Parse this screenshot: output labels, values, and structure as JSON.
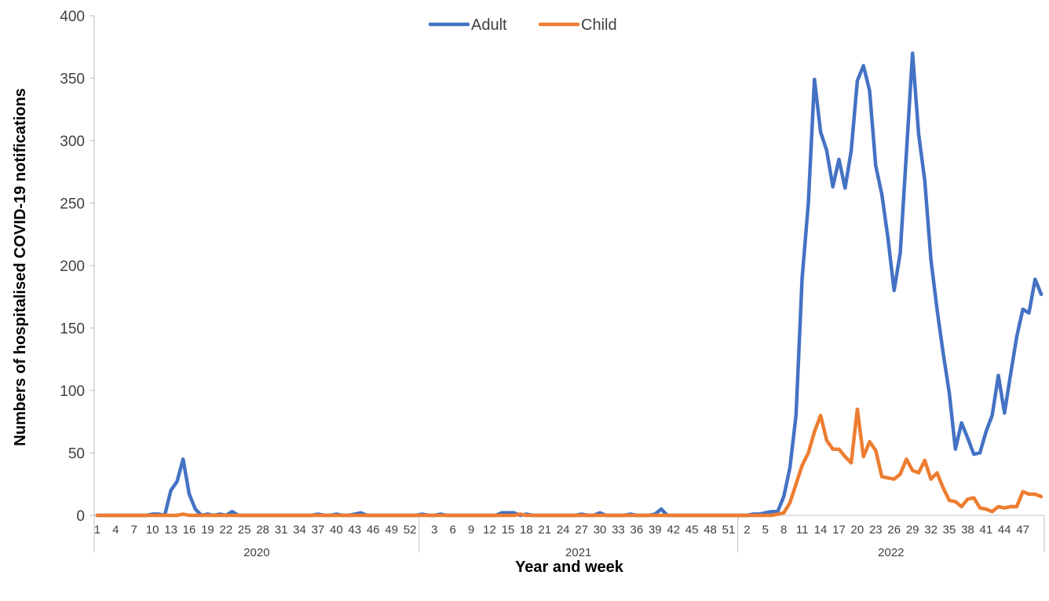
{
  "chart_data": {
    "type": "line",
    "xlabel": "Year and week",
    "ylabel": "Numbers of hospitalised  COVID-19 notifications",
    "ylim": [
      0,
      400
    ],
    "yticks": [
      "0",
      "50",
      "100",
      "150",
      "200",
      "250",
      "300",
      "350",
      "400"
    ],
    "legend_position": "top-center",
    "grid": false,
    "years": [
      {
        "label": "2020",
        "weeks": [
          "1",
          "4",
          "7",
          "10",
          "13",
          "16",
          "19",
          "22",
          "25",
          "28",
          "31",
          "34",
          "37",
          "40",
          "43",
          "46",
          "49",
          "52"
        ]
      },
      {
        "label": "2021",
        "weeks": [
          "3",
          "6",
          "9",
          "12",
          "15",
          "18",
          "21",
          "24",
          "27",
          "30",
          "33",
          "36",
          "39",
          "42",
          "45",
          "48",
          "51"
        ]
      },
      {
        "label": "2022",
        "weeks": [
          "2",
          "5",
          "8",
          "11",
          "14",
          "17",
          "20",
          "23",
          "26",
          "29",
          "32",
          "35",
          "38",
          "41",
          "44",
          "47"
        ]
      }
    ],
    "series": [
      {
        "name": "Adult",
        "color": "#4472C4",
        "values": [
          0,
          0,
          0,
          0,
          0,
          0,
          0,
          0,
          0,
          1,
          1,
          0,
          20,
          27,
          45,
          17,
          5,
          0,
          1,
          0,
          1,
          0,
          3,
          0,
          0,
          0,
          0,
          0,
          0,
          0,
          0,
          0,
          0,
          0,
          0,
          0,
          1,
          0,
          0,
          1,
          0,
          0,
          1,
          2,
          0,
          0,
          0,
          0,
          0,
          0,
          0,
          0,
          0,
          1,
          0,
          0,
          1,
          0,
          0,
          0,
          0,
          0,
          0,
          0,
          0,
          0,
          2,
          2,
          2,
          0,
          1,
          0,
          0,
          0,
          0,
          0,
          0,
          0,
          0,
          1,
          0,
          0,
          2,
          0,
          0,
          0,
          0,
          1,
          0,
          0,
          0,
          1,
          5,
          0,
          0,
          0,
          0,
          0,
          0,
          0,
          0,
          0,
          0,
          0,
          0,
          0,
          0,
          1,
          1,
          2,
          3,
          3,
          15,
          38,
          80,
          190,
          250,
          349,
          307,
          292,
          263,
          285,
          262,
          292,
          348,
          360,
          340,
          280,
          257,
          222,
          180,
          210,
          290,
          370,
          305,
          268,
          205,
          165,
          130,
          98,
          53,
          74,
          62,
          49,
          50,
          67,
          80,
          112,
          82,
          113,
          143,
          165,
          162,
          189,
          177
        ]
      },
      {
        "name": "Child",
        "color": "#ED7D31",
        "values": [
          0,
          0,
          0,
          0,
          0,
          0,
          0,
          0,
          0,
          0,
          0,
          0,
          0,
          0,
          1,
          0,
          0,
          0,
          0,
          0,
          0,
          0,
          0,
          0,
          0,
          0,
          0,
          0,
          0,
          0,
          0,
          0,
          0,
          0,
          0,
          0,
          0,
          0,
          0,
          0,
          0,
          0,
          0,
          0,
          0,
          0,
          0,
          0,
          0,
          0,
          0,
          0,
          0,
          0,
          0,
          0,
          0,
          0,
          0,
          0,
          0,
          0,
          0,
          0,
          0,
          0,
          0,
          0,
          0,
          1,
          0,
          0,
          0,
          0,
          0,
          0,
          0,
          0,
          0,
          0,
          0,
          0,
          0,
          0,
          0,
          0,
          0,
          0,
          0,
          0,
          0,
          0,
          0,
          0,
          0,
          0,
          0,
          0,
          0,
          0,
          0,
          0,
          0,
          0,
          0,
          0,
          0,
          0,
          0,
          0,
          0,
          1,
          2,
          10,
          25,
          40,
          50,
          67,
          80,
          60,
          53,
          53,
          47,
          42,
          85,
          47,
          59,
          52,
          31,
          30,
          29,
          33,
          45,
          36,
          34,
          44,
          29,
          34,
          22,
          12,
          11,
          7,
          13,
          14,
          6,
          5,
          3,
          7,
          6,
          7,
          7,
          19,
          17,
          17,
          15
        ]
      }
    ]
  }
}
